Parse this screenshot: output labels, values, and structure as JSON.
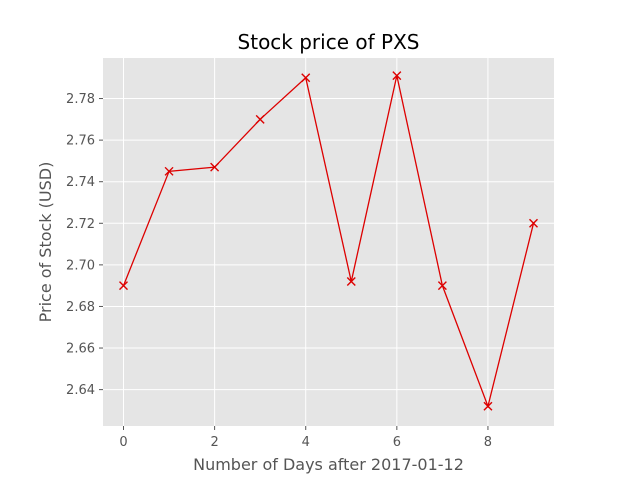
{
  "chart_data": {
    "type": "line",
    "title": "Stock price of PXS",
    "xlabel": "Number of Days after 2017-01-12",
    "ylabel": "Price of Stock (USD)",
    "xlim": [
      -0.45,
      9.45
    ],
    "ylim": [
      2.6225,
      2.7995
    ],
    "xticks": [
      0,
      2,
      4,
      6,
      8
    ],
    "yticks": [
      2.64,
      2.66,
      2.68,
      2.7,
      2.72,
      2.74,
      2.76,
      2.78
    ],
    "grid": true,
    "legend": "none",
    "marker": "x",
    "colors": {
      "line": "#dd0000",
      "background": "#e5e5e5",
      "grid": "#ffffff"
    },
    "series": [
      {
        "x": [
          0,
          1,
          2,
          3,
          4,
          5,
          6,
          7,
          8,
          9
        ],
        "y": [
          2.69,
          2.745,
          2.747,
          2.77,
          2.79,
          2.692,
          2.791,
          2.69,
          2.632,
          2.72
        ]
      }
    ]
  }
}
